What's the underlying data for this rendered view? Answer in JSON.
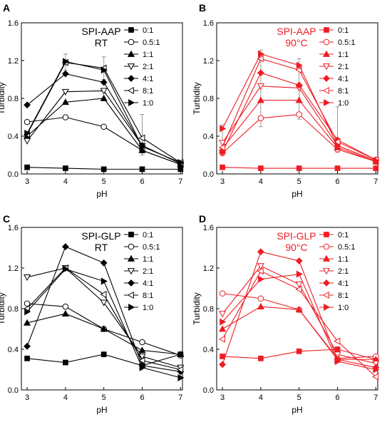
{
  "figure": {
    "ylabel": "Turbidity",
    "xlabel": "pH",
    "legend_labels": [
      "0:1",
      "0.5:1",
      "1:1",
      "2:1",
      "4:1",
      "8:1",
      "1:0"
    ]
  },
  "chart_data": [
    {
      "type": "line",
      "panel": "A",
      "annotation": [
        "SPI-AAP",
        "RT"
      ],
      "color": "#000000",
      "x": [
        3,
        4,
        5,
        6,
        7
      ],
      "xlim": [
        2.85,
        7.05
      ],
      "ylim": [
        0,
        1.6
      ],
      "xticks": [
        "3",
        "4",
        "5",
        "6",
        "7"
      ],
      "yticks": [
        "0.0",
        "0.4",
        "0.8",
        "1.2",
        "1.6"
      ],
      "xlabel": "pH",
      "ylabel": "Turbidity",
      "legend_position": "top-right",
      "series": [
        {
          "name": "0:1",
          "marker": "square-filled",
          "values": [
            0.07,
            0.06,
            0.05,
            0.05,
            0.05
          ]
        },
        {
          "name": "0.5:1",
          "marker": "circle-open",
          "values": [
            0.55,
            0.6,
            0.5,
            0.25,
            0.1
          ]
        },
        {
          "name": "1:1",
          "marker": "triangle-up-filled",
          "values": [
            0.4,
            0.76,
            0.8,
            0.25,
            0.1
          ]
        },
        {
          "name": "2:1",
          "marker": "triangle-down-open",
          "values": [
            0.35,
            0.87,
            0.88,
            0.3,
            0.11
          ]
        },
        {
          "name": "4:1",
          "marker": "diamond-filled",
          "values": [
            0.73,
            1.06,
            0.97,
            0.3,
            0.11
          ]
        },
        {
          "name": "8:1",
          "marker": "triangle-left-open",
          "values": [
            0.42,
            1.18,
            1.12,
            0.38,
            0.12
          ]
        },
        {
          "name": "1:0",
          "marker": "triangle-right-filled",
          "values": [
            0.43,
            1.19,
            1.1,
            0.29,
            0.12
          ]
        }
      ],
      "error_bars": [
        {
          "x": 4,
          "low": 1.1,
          "high": 1.27
        },
        {
          "x": 5,
          "low": 1.0,
          "high": 1.24
        },
        {
          "x": 6,
          "low": 0.2,
          "high": 0.63
        }
      ]
    },
    {
      "type": "line",
      "panel": "B",
      "annotation": [
        "SPI-AAP",
        "90°C"
      ],
      "color": "#ee1d23",
      "x": [
        3,
        4,
        5,
        6,
        7
      ],
      "xlim": [
        2.85,
        7.05
      ],
      "ylim": [
        0,
        1.6
      ],
      "xticks": [
        "3",
        "4",
        "5",
        "6",
        "7"
      ],
      "yticks": [
        "0.0",
        "0.4",
        "0.8",
        "1.2",
        "1.6"
      ],
      "xlabel": "pH",
      "ylabel": "Turbidity",
      "legend_position": "top-right",
      "series": [
        {
          "name": "0:1",
          "marker": "square-filled",
          "values": [
            0.07,
            0.06,
            0.06,
            0.06,
            0.06
          ]
        },
        {
          "name": "0.5:1",
          "marker": "circle-open",
          "values": [
            0.22,
            0.59,
            0.63,
            0.26,
            0.13
          ]
        },
        {
          "name": "1:1",
          "marker": "triangle-up-filled",
          "values": [
            0.27,
            0.78,
            0.78,
            0.28,
            0.13
          ]
        },
        {
          "name": "2:1",
          "marker": "triangle-down-open",
          "values": [
            0.33,
            0.93,
            0.91,
            0.3,
            0.14
          ]
        },
        {
          "name": "4:1",
          "marker": "diamond-filled",
          "values": [
            0.23,
            1.07,
            0.94,
            0.36,
            0.15
          ]
        },
        {
          "name": "8:1",
          "marker": "triangle-left-open",
          "values": [
            0.28,
            1.22,
            1.1,
            0.34,
            0.15
          ]
        },
        {
          "name": "1:0",
          "marker": "triangle-right-filled",
          "values": [
            0.48,
            1.27,
            1.15,
            0.3,
            0.14
          ]
        }
      ],
      "error_bars": [
        {
          "x": 4,
          "low": 0.5,
          "high": 1.31
        },
        {
          "x": 5,
          "low": 0.58,
          "high": 1.22
        },
        {
          "x": 6,
          "low": 0.23,
          "high": 0.71
        },
        {
          "x": 3,
          "low": 0.2,
          "high": 0.52
        }
      ]
    },
    {
      "type": "line",
      "panel": "C",
      "annotation": [
        "SPI-GLP",
        "RT"
      ],
      "color": "#000000",
      "x": [
        3,
        4,
        5,
        6,
        7
      ],
      "xlim": [
        2.85,
        7.05
      ],
      "ylim": [
        0,
        1.6
      ],
      "xticks": [
        "3",
        "4",
        "5",
        "6",
        "7"
      ],
      "yticks": [
        "0.0",
        "0.4",
        "0.8",
        "1.2",
        "1.6"
      ],
      "xlabel": "pH",
      "ylabel": "Turbidity",
      "legend_position": "top-right",
      "series": [
        {
          "name": "0:1",
          "marker": "square-filled",
          "values": [
            0.31,
            0.27,
            0.35,
            0.24,
            0.35
          ]
        },
        {
          "name": "0.5:1",
          "marker": "circle-open",
          "values": [
            0.85,
            0.82,
            0.6,
            0.47,
            0.34
          ]
        },
        {
          "name": "1:1",
          "marker": "triangle-up-filled",
          "values": [
            0.66,
            0.75,
            0.6,
            0.39,
            0.35
          ]
        },
        {
          "name": "2:1",
          "marker": "triangle-down-open",
          "values": [
            1.11,
            1.2,
            0.86,
            0.33,
            0.22
          ]
        },
        {
          "name": "4:1",
          "marker": "diamond-filled",
          "values": [
            0.43,
            1.41,
            1.25,
            0.24,
            0.18
          ]
        },
        {
          "name": "8:1",
          "marker": "triangle-left-open",
          "values": [
            0.8,
            1.2,
            0.94,
            0.29,
            0.2
          ]
        },
        {
          "name": "1:0",
          "marker": "triangle-right-filled",
          "values": [
            0.77,
            1.19,
            1.07,
            0.22,
            0.12
          ]
        }
      ],
      "error_bars": []
    },
    {
      "type": "line",
      "panel": "D",
      "annotation": [
        "SPI-GLP",
        "90°C"
      ],
      "color": "#ee1d23",
      "x": [
        3,
        4,
        5,
        6,
        7
      ],
      "xlim": [
        2.85,
        7.05
      ],
      "ylim": [
        0,
        1.6
      ],
      "xticks": [
        "3",
        "4",
        "5",
        "6",
        "7"
      ],
      "yticks": [
        "0.0",
        "0.4",
        "0.8",
        "1.2",
        "1.6"
      ],
      "xlabel": "pH",
      "ylabel": "Turbidity",
      "legend_position": "top-right",
      "series": [
        {
          "name": "0:1",
          "marker": "square-filled",
          "values": [
            0.33,
            0.31,
            0.38,
            0.4,
            0.3
          ]
        },
        {
          "name": "0.5:1",
          "marker": "circle-open",
          "values": [
            0.95,
            0.9,
            0.79,
            0.31,
            0.33
          ]
        },
        {
          "name": "1:1",
          "marker": "triangle-up-filled",
          "values": [
            0.6,
            0.82,
            0.79,
            0.3,
            0.3
          ]
        },
        {
          "name": "2:1",
          "marker": "triangle-down-open",
          "values": [
            0.75,
            1.22,
            1.04,
            0.35,
            0.26
          ]
        },
        {
          "name": "4:1",
          "marker": "diamond-filled",
          "values": [
            0.25,
            1.36,
            1.27,
            0.3,
            0.22
          ]
        },
        {
          "name": "8:1",
          "marker": "triangle-left-open",
          "values": [
            0.5,
            1.17,
            0.99,
            0.48,
            0.13
          ]
        },
        {
          "name": "1:0",
          "marker": "triangle-right-filled",
          "values": [
            0.67,
            1.09,
            1.14,
            0.28,
            0.2
          ]
        }
      ],
      "error_bars": []
    }
  ]
}
